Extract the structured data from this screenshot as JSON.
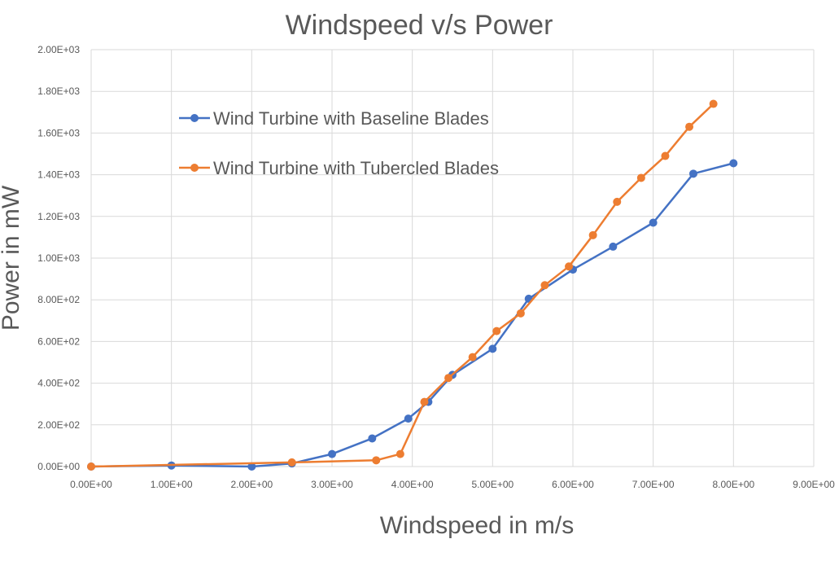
{
  "chart_data": {
    "type": "line",
    "title": "Windspeed v/s Power",
    "xlabel": "Windspeed in m/s",
    "ylabel": "Power in mW",
    "xlim": [
      0,
      9
    ],
    "ylim": [
      0,
      2000
    ],
    "x_ticks": [
      0,
      1,
      2,
      3,
      4,
      5,
      6,
      7,
      8,
      9
    ],
    "y_ticks": [
      0,
      200,
      400,
      600,
      800,
      1000,
      1200,
      1400,
      1600,
      1800,
      2000
    ],
    "x_tick_labels": [
      "0.00E+00",
      "1.00E+00",
      "2.00E+00",
      "3.00E+00",
      "4.00E+00",
      "5.00E+00",
      "6.00E+00",
      "7.00E+00",
      "8.00E+00",
      "9.00E+00"
    ],
    "y_tick_labels": [
      "0.00E+00",
      "2.00E+02",
      "4.00E+02",
      "6.00E+02",
      "8.00E+02",
      "1.00E+03",
      "1.20E+03",
      "1.40E+03",
      "1.60E+03",
      "1.80E+03",
      "2.00E+03"
    ],
    "grid": true,
    "legend_position": "top-left",
    "series": [
      {
        "name": "Wind Turbine with Baseline Blades",
        "color": "#4472c4",
        "x": [
          0,
          1,
          2,
          2.5,
          3,
          3.5,
          3.95,
          4.2,
          4.5,
          5,
          5.45,
          6,
          6.5,
          7,
          7.5,
          8
        ],
        "y": [
          0,
          5,
          0,
          15,
          60,
          135,
          230,
          310,
          440,
          565,
          805,
          945,
          1055,
          1170,
          1405,
          1455
        ]
      },
      {
        "name": "Wind Turbine with Tubercled Blades",
        "color": "#ed7d31",
        "x": [
          0,
          2.5,
          3.55,
          3.85,
          4.15,
          4.45,
          4.75,
          5.05,
          5.35,
          5.65,
          5.95,
          6.25,
          6.55,
          6.85,
          7.15,
          7.45,
          7.75
        ],
        "y": [
          0,
          20,
          30,
          60,
          310,
          425,
          525,
          650,
          735,
          870,
          960,
          1110,
          1270,
          1385,
          1490,
          1630,
          1740
        ]
      }
    ]
  }
}
